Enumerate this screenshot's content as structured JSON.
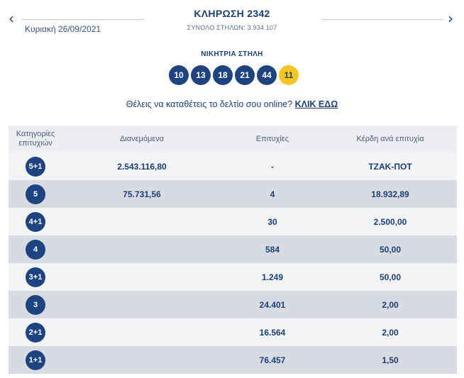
{
  "header": {
    "prev_arrow": "‹",
    "next_arrow": "›",
    "date": "Κυριακή 26/09/2021",
    "draw_title": "ΚΛΗΡΩΣΗ 2342",
    "columns_total": "ΣΥΝΟΛΟ ΣΤΗΛΩΝ: 3.934.107"
  },
  "winning": {
    "label": "ΝΙΚΗΤΡΙΑ ΣΤΗΛΗ",
    "numbers": [
      "10",
      "13",
      "18",
      "21",
      "44"
    ],
    "joker": "11"
  },
  "online": {
    "text": "Θέλεις να καταθέτεις το δελτίο σου online?",
    "link": "ΚΛΙΚ ΕΔΩ"
  },
  "table": {
    "headers": {
      "category_line1": "Κατηγορίες",
      "category_line2": "επιτυχιών",
      "distributed": "Διανεμόμενα",
      "winners": "Επιτυχίες",
      "prize": "Κέρδη ανά επιτυχία"
    },
    "rows": [
      {
        "category": "5+1",
        "distributed": "2.543.116,80",
        "winners": "-",
        "prize": "ΤΖΑΚ-ΠΟΤ"
      },
      {
        "category": "5",
        "distributed": "75.731,56",
        "winners": "4",
        "prize": "18.932,89"
      },
      {
        "category": "4+1",
        "distributed": "",
        "winners": "30",
        "prize": "2.500,00"
      },
      {
        "category": "4",
        "distributed": "",
        "winners": "584",
        "prize": "50,00"
      },
      {
        "category": "3+1",
        "distributed": "",
        "winners": "1.249",
        "prize": "50,00"
      },
      {
        "category": "3",
        "distributed": "",
        "winners": "24.401",
        "prize": "2,00"
      },
      {
        "category": "2+1",
        "distributed": "",
        "winners": "16.564",
        "prize": "2,00"
      },
      {
        "category": "1+1",
        "distributed": "",
        "winners": "76.457",
        "prize": "1,50"
      }
    ]
  },
  "colors": {
    "navy": "#1d4481",
    "joker_yellow": "#f6c61b",
    "row_light": "#f3f4f6",
    "row_dark": "#d8dbe2"
  }
}
